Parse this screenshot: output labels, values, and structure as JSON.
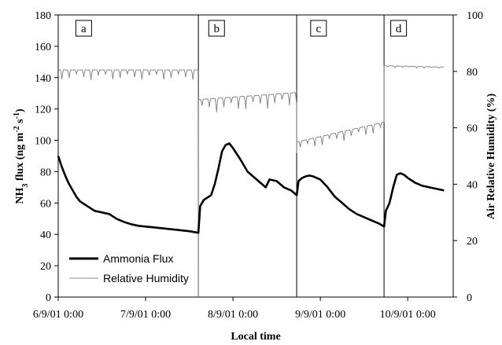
{
  "chart_data": {
    "type": "line",
    "xlabel": "Local time",
    "ylabel_left": "NH3 flux (ng m-2 s-1)",
    "ylabel_left_parts": {
      "pre": "NH",
      "sub": "3",
      "mid": " flux (ng m",
      "sup1": "-2",
      "mid2": " s",
      "sup2": "-1",
      "post": ")"
    },
    "ylabel_right": "Air Relative Humidity (%)",
    "x_ticks": [
      "6/9/01 0:00",
      "7/9/01 0:00",
      "8/9/01 0:00",
      "9/9/01 0:00",
      "10/9/01 0:00"
    ],
    "x_tick_hours": [
      0,
      24,
      48,
      72,
      96
    ],
    "xlim_hours": [
      0,
      108.5
    ],
    "ylim_left": [
      0,
      180
    ],
    "yticks_left": [
      0,
      20,
      40,
      60,
      80,
      100,
      120,
      140,
      160,
      180
    ],
    "ylim_right": [
      0,
      100
    ],
    "yticks_right": [
      0,
      20,
      40,
      60,
      80,
      100
    ],
    "grid": false,
    "legend_position": "bottom-left",
    "panel_dividers_hours": [
      38.5,
      65.5,
      89.5
    ],
    "panels": [
      {
        "label": "a",
        "x_hours": 7
      },
      {
        "label": "b",
        "x_hours": 43.5
      },
      {
        "label": "c",
        "x_hours": 71.5
      },
      {
        "label": "d",
        "x_hours": 93.5
      }
    ],
    "series": [
      {
        "name": "Ammonia Flux",
        "axis": "left",
        "color": "#000000",
        "x_hours": [
          0,
          1,
          2,
          3,
          4,
          5,
          6,
          8,
          10,
          12,
          14,
          16,
          18,
          20,
          22,
          24,
          26,
          28,
          30,
          32,
          34,
          36,
          38.5,
          39,
          40,
          42,
          43,
          44,
          45,
          46,
          47,
          48,
          50,
          52,
          54,
          56,
          57,
          58,
          60,
          62,
          64,
          65.5,
          66,
          67,
          68,
          69,
          70,
          72,
          74,
          76,
          78,
          80,
          82,
          84,
          86,
          88,
          89.5,
          90,
          91,
          92,
          93,
          94,
          95,
          96,
          98,
          100,
          102,
          104,
          106
        ],
        "values": [
          90,
          83,
          77,
          72,
          68,
          64,
          61,
          58,
          55,
          54,
          53,
          50,
          48,
          46.5,
          45.5,
          45,
          44.5,
          44,
          43.5,
          43,
          42.5,
          42,
          41,
          58,
          62,
          65,
          72,
          82,
          93,
          97,
          98,
          95,
          88,
          80,
          76,
          72,
          70,
          75,
          74,
          70,
          68,
          65,
          74,
          76,
          77,
          77.5,
          77,
          75,
          70,
          64,
          60,
          56,
          53,
          51,
          49,
          47,
          45,
          55,
          60,
          70,
          78,
          79,
          78,
          76,
          73,
          71,
          70,
          69,
          68
        ]
      },
      {
        "name": "Relative Humidity",
        "axis": "right",
        "color": "#888888",
        "segments": [
          {
            "x_hours": [
              0,
              38.5
            ],
            "base": 80.5,
            "dip": 3.5,
            "period": 2
          },
          {
            "x_hours": [
              38.5,
              65.5
            ],
            "base": 70,
            "base_end": 72.5,
            "dip": 5,
            "period": 2
          },
          {
            "x_hours": [
              65.5,
              89.5
            ],
            "base": 55,
            "base_end": 62,
            "dip": 3.5,
            "period": 2
          },
          {
            "x_hours": [
              89.5,
              106
            ],
            "base": 82,
            "base_end": 81.5,
            "dip": 0.6,
            "period": 2
          }
        ]
      }
    ]
  }
}
